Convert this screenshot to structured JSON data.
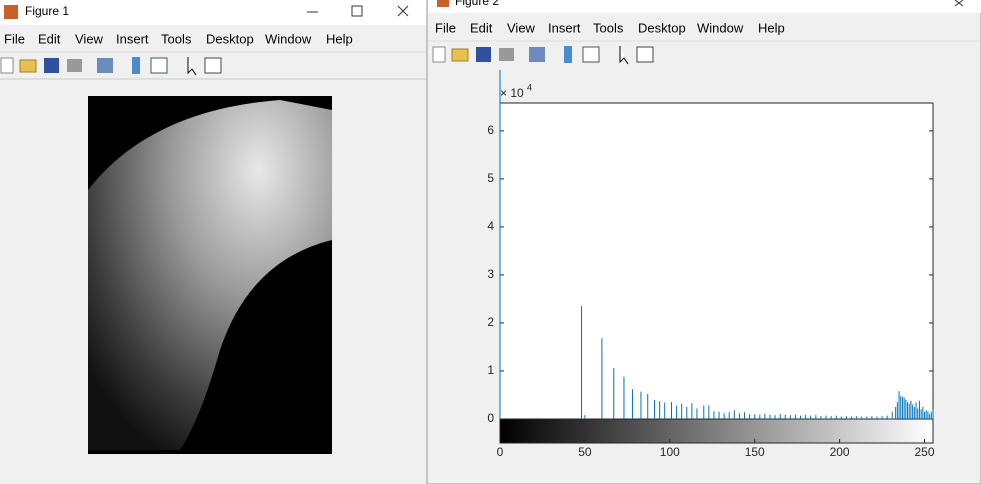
{
  "windows": [
    {
      "title": "Figure 1",
      "menu": [
        "File",
        "Edit",
        "View",
        "Insert",
        "Tools",
        "Desktop",
        "Window",
        "Help"
      ]
    },
    {
      "title": "Figure 2",
      "menu": [
        "File",
        "Edit",
        "View",
        "Insert",
        "Tools",
        "Desktop",
        "Window",
        "Help"
      ]
    }
  ],
  "chart_data": {
    "type": "stem",
    "color": "#0072bd",
    "x": [
      0,
      48,
      50,
      60,
      67,
      73,
      78,
      83,
      87,
      91,
      94,
      97,
      101,
      104,
      107,
      110,
      113,
      116,
      120,
      123,
      126,
      129,
      132,
      135,
      138,
      141,
      144,
      147,
      150,
      153,
      156,
      159,
      162,
      165,
      168,
      171,
      174,
      177,
      180,
      183,
      186,
      189,
      192,
      195,
      198,
      201,
      204,
      207,
      210,
      213,
      216,
      219,
      222,
      225,
      228,
      231,
      233,
      234,
      235,
      236,
      237,
      238,
      239,
      240,
      241,
      242,
      243,
      244,
      245,
      246,
      247,
      248,
      249,
      250,
      251,
      252,
      253,
      254,
      255
    ],
    "values": [
      72700,
      23500,
      800,
      16800,
      10600,
      8800,
      6200,
      5700,
      5200,
      3900,
      3700,
      3400,
      3500,
      2800,
      3200,
      2500,
      3300,
      2200,
      2800,
      2800,
      1600,
      1500,
      1200,
      1400,
      1800,
      1200,
      1400,
      1000,
      1000,
      900,
      1100,
      900,
      800,
      1000,
      900,
      800,
      900,
      700,
      900,
      700,
      800,
      600,
      700,
      600,
      700,
      500,
      600,
      500,
      600,
      500,
      500,
      600,
      500,
      600,
      700,
      1500,
      2500,
      3500,
      5800,
      4800,
      4600,
      4500,
      4000,
      3500,
      3200,
      3800,
      3000,
      2500,
      3400,
      2200,
      3800,
      2000,
      2500,
      1500,
      1800,
      1600,
      1000,
      1500,
      2000
    ],
    "xlim": [
      0,
      255
    ],
    "xticks": [
      0,
      50,
      100,
      150,
      200,
      250
    ],
    "ylim": [
      -5000,
      65800
    ],
    "yticks": [
      {
        "value": 0,
        "label": "0"
      },
      {
        "value": 10000,
        "label": "1"
      },
      {
        "value": 20000,
        "label": "2"
      },
      {
        "value": 30000,
        "label": "3"
      },
      {
        "value": 40000,
        "label": "4"
      },
      {
        "value": 50000,
        "label": "5"
      },
      {
        "value": 60000,
        "label": "6"
      }
    ],
    "y_scale_label": "× 10",
    "y_scale_power": "4"
  }
}
